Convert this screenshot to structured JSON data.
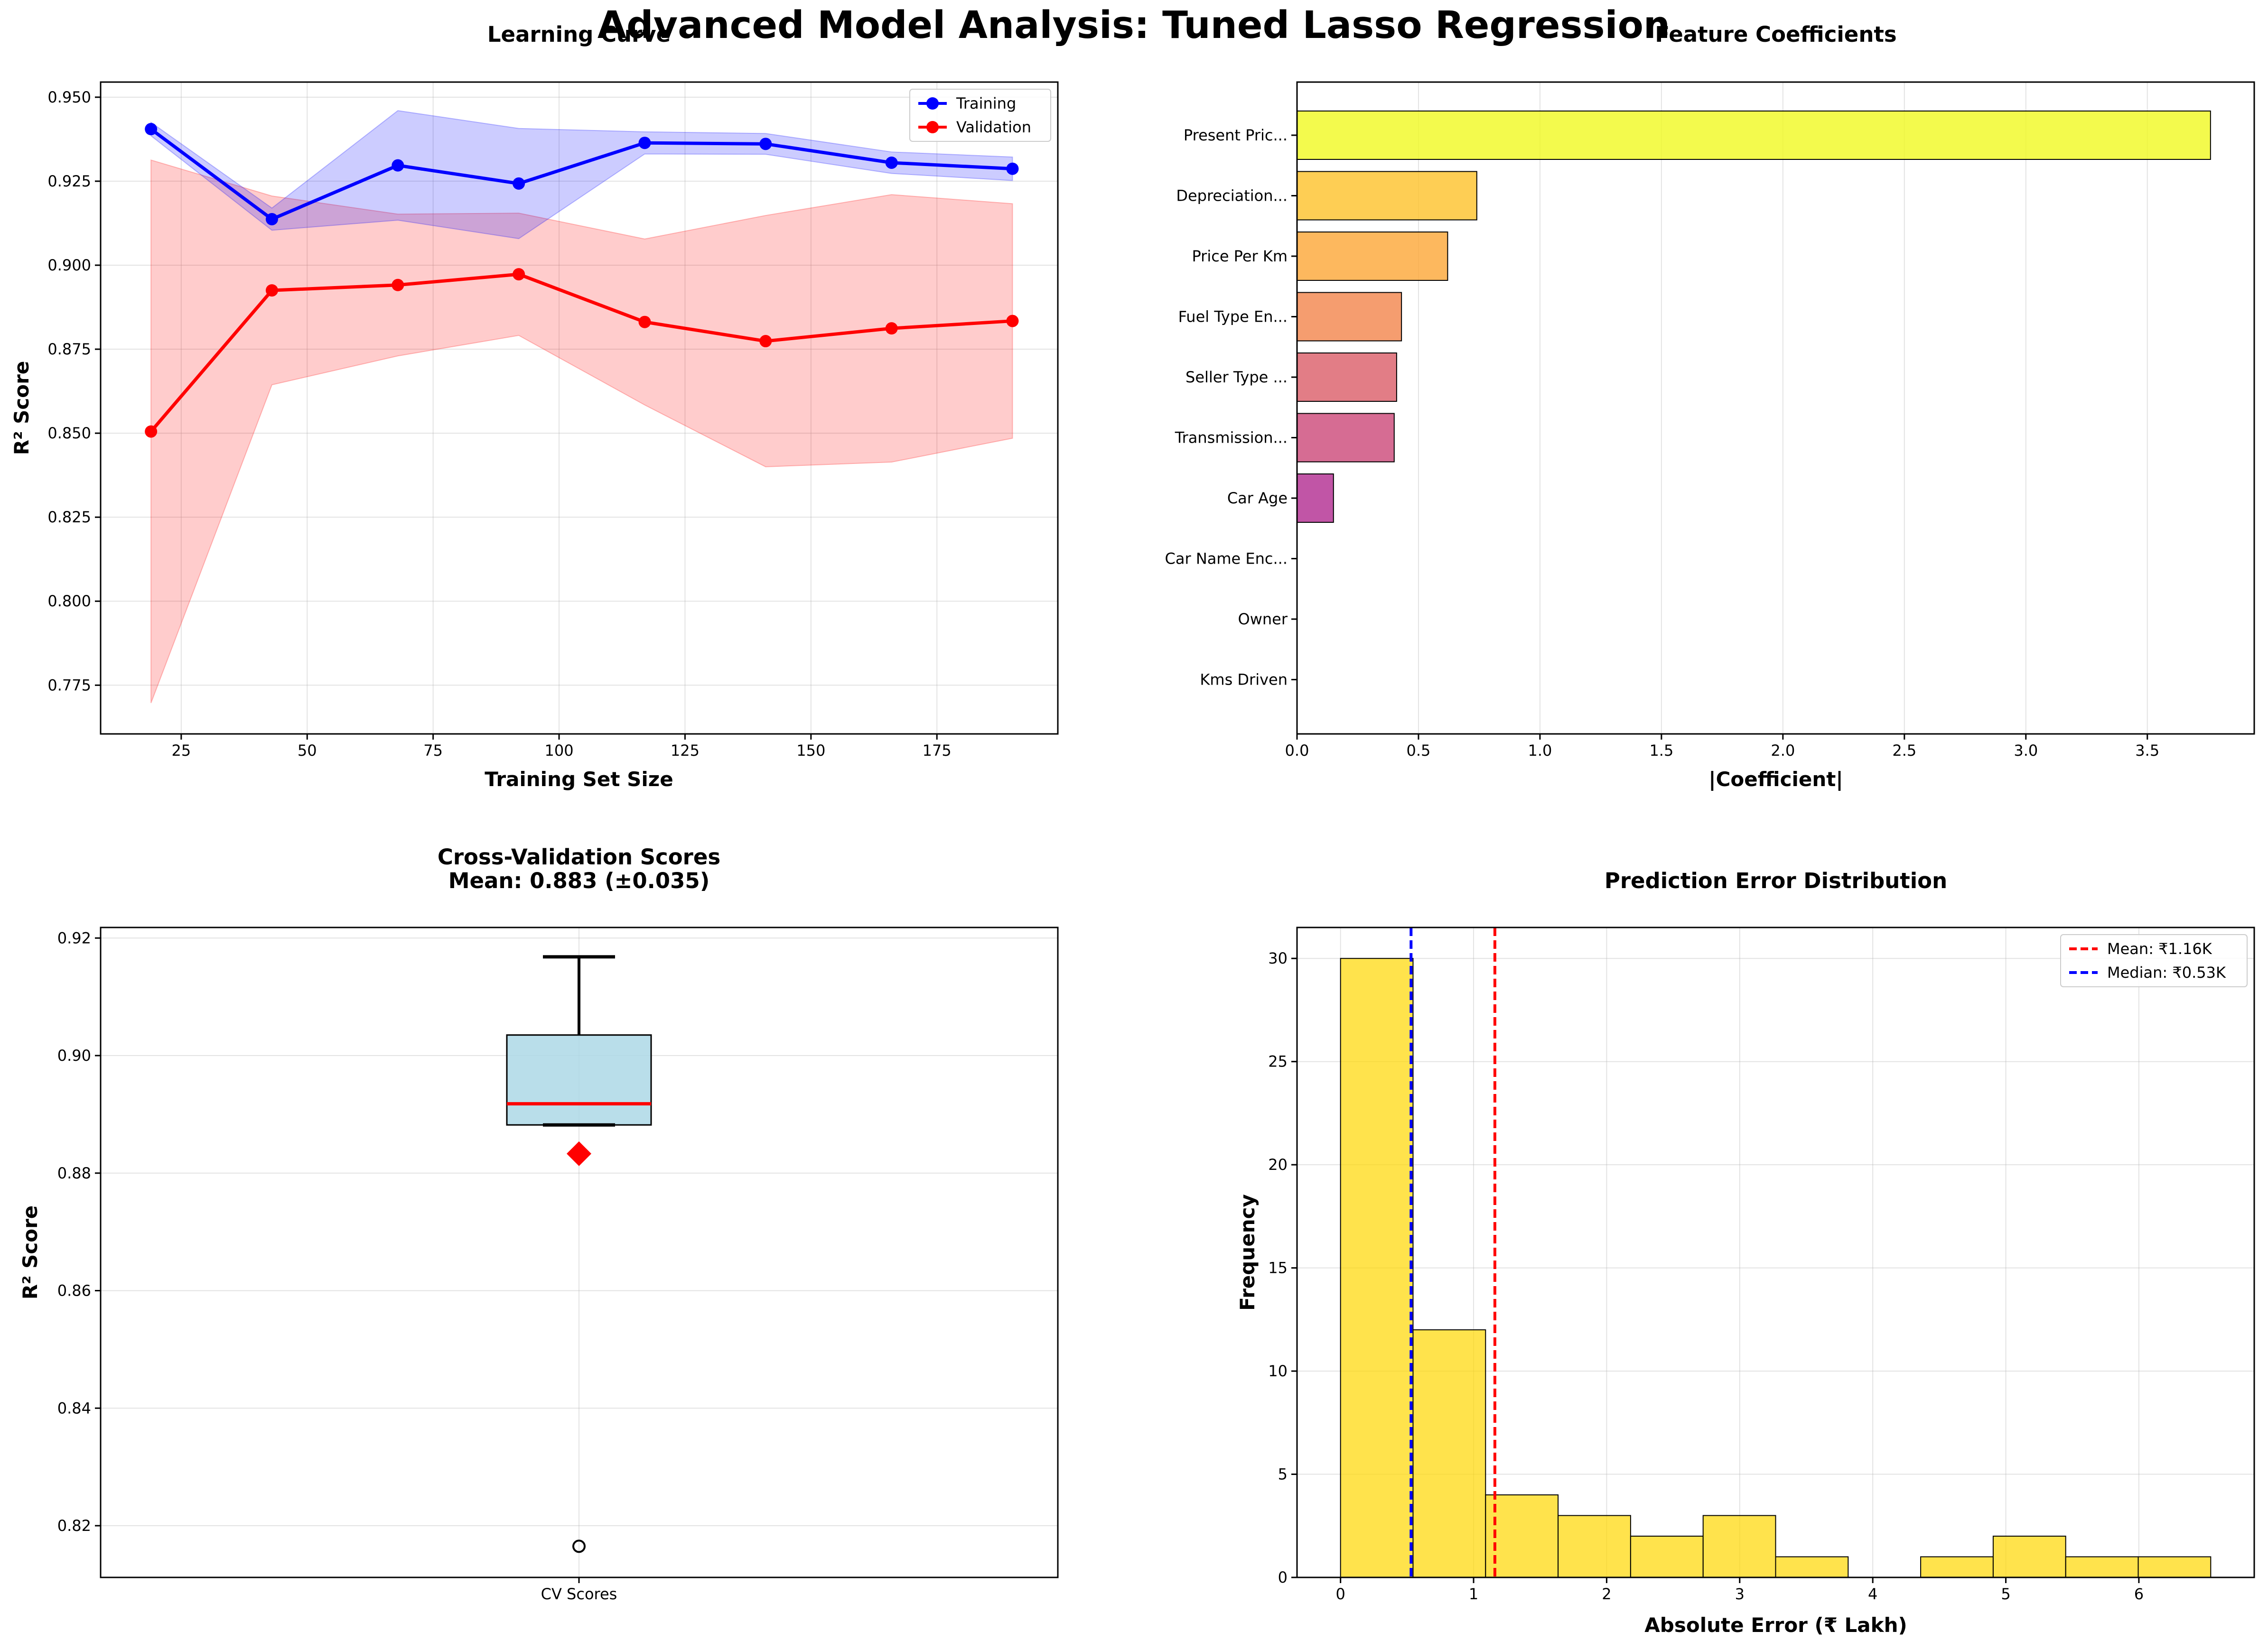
{
  "figure": {
    "suptitle": "Advanced Model Analysis: Tuned Lasso Regression"
  },
  "chart_data": [
    {
      "id": "learning-curve",
      "type": "line",
      "title": "Learning Curve",
      "xlabel": "Training Set Size",
      "ylabel": "R² Score",
      "x": [
        19,
        43,
        68,
        92,
        117,
        141,
        166,
        190
      ],
      "xlim": [
        9,
        199
      ],
      "ylim": [
        0.7605,
        0.9545
      ],
      "xticks": [
        25,
        50,
        75,
        100,
        125,
        150,
        175
      ],
      "yticks": [
        0.775,
        0.8,
        0.825,
        0.85,
        0.875,
        0.9,
        0.925,
        0.95
      ],
      "ytick_labels": [
        "0.775",
        "0.800",
        "0.825",
        "0.850",
        "0.875",
        "0.900",
        "0.925",
        "0.950"
      ],
      "grid": true,
      "legend_position": "upper right",
      "series": [
        {
          "name": "Training",
          "color": "#0000ff",
          "values": [
            0.9405,
            0.9137,
            0.9297,
            0.9243,
            0.9364,
            0.9361,
            0.9305,
            0.9287
          ],
          "band_upper": [
            0.9425,
            0.917,
            0.946,
            0.9407,
            0.9397,
            0.9392,
            0.9337,
            0.9322
          ],
          "band_lower": [
            0.9385,
            0.9104,
            0.9134,
            0.9079,
            0.9331,
            0.933,
            0.9273,
            0.9252
          ]
        },
        {
          "name": "Validation",
          "color": "#ff0000",
          "values": [
            0.8505,
            0.8925,
            0.8941,
            0.8973,
            0.8831,
            0.8774,
            0.8812,
            0.8834
          ],
          "band_upper": [
            0.9313,
            0.9206,
            0.9152,
            0.9155,
            0.9078,
            0.9148,
            0.921,
            0.9183
          ],
          "band_lower": [
            0.7697,
            0.8644,
            0.873,
            0.8791,
            0.8584,
            0.84,
            0.8414,
            0.8485
          ]
        }
      ]
    },
    {
      "id": "feature-coefficients",
      "type": "bar",
      "orientation": "horizontal",
      "title": "Feature Coefficients",
      "xlabel": "|Coefficient|",
      "categories": [
        "Present Pric...",
        "Depreciation...",
        "Price Per Km",
        "Fuel Type En...",
        "Seller Type ...",
        "Transmission...",
        "Car Age",
        "Car Name Enc...",
        "Owner",
        "Kms Driven"
      ],
      "values": [
        3.76,
        0.74,
        0.62,
        0.43,
        0.41,
        0.4,
        0.15,
        0.0,
        0.0,
        0.0
      ],
      "colors": [
        "#f0f921",
        "#fec229",
        "#fca636",
        "#f2844b",
        "#db5c68",
        "#cc4778",
        "#b12a90",
        "#8b0aa5",
        "#5c01a6",
        "#0d0887"
      ],
      "xlim": [
        0,
        3.94
      ],
      "xticks": [
        0.0,
        0.5,
        1.0,
        1.5,
        2.0,
        2.5,
        3.0,
        3.5
      ],
      "xtick_labels": [
        "0.0",
        "0.5",
        "1.0",
        "1.5",
        "2.0",
        "2.5",
        "3.0",
        "3.5"
      ],
      "grid": true
    },
    {
      "id": "cv-scores",
      "type": "box",
      "title": "Cross-Validation Scores",
      "subtitle": "Mean: 0.883 (±0.035)",
      "ylabel": "R² Score",
      "category": "CV Scores",
      "ylim": [
        0.8112,
        0.9218
      ],
      "yticks": [
        0.82,
        0.84,
        0.86,
        0.88,
        0.9,
        0.92
      ],
      "ytick_labels": [
        "0.82",
        "0.84",
        "0.86",
        "0.88",
        "0.90",
        "0.92"
      ],
      "whisker_low": 0.8882,
      "q1": 0.8882,
      "median": 0.8918,
      "q3": 0.9035,
      "whisker_high": 0.9168,
      "mean": 0.8833,
      "outliers": [
        0.8165
      ],
      "box_color": "#add8e6",
      "median_color": "#ff0000",
      "mean_color": "#ff0000",
      "grid": true
    },
    {
      "id": "prediction-error",
      "type": "histogram",
      "title": "Prediction Error Distribution",
      "xlabel": "Absolute Error (₹ Lakh)",
      "ylabel": "Frequency",
      "bin_edges": [
        0.0,
        0.545,
        1.09,
        1.635,
        2.18,
        2.725,
        3.27,
        3.815,
        4.36,
        4.905,
        5.45,
        5.995,
        6.54
      ],
      "counts": [
        30,
        12,
        4,
        3,
        2,
        3,
        1,
        0,
        1,
        2,
        1,
        1
      ],
      "bar_color": "#ffd700",
      "xlim": [
        -0.327,
        6.867
      ],
      "ylim": [
        0,
        31.5
      ],
      "xticks": [
        0,
        1,
        2,
        3,
        4,
        5,
        6
      ],
      "yticks": [
        0,
        5,
        10,
        15,
        20,
        25,
        30
      ],
      "grid": true,
      "legend_position": "upper right",
      "reference_lines": [
        {
          "name": "Mean: ₹1.16K",
          "value": 1.16,
          "color": "#ff0000"
        },
        {
          "name": "Median: ₹0.53K",
          "value": 0.53,
          "color": "#0000ff"
        }
      ]
    }
  ]
}
